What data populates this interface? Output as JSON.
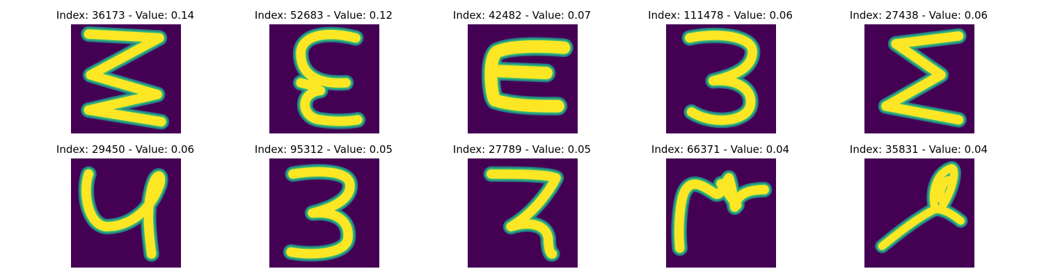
{
  "colors": {
    "background": "#440154",
    "stroke": "#fde725",
    "edge_mid": "#35b779",
    "edge_low": "#21918c"
  },
  "panels": [
    {
      "title": "Index: 36173 - Value: 0.14",
      "index": 36173,
      "value": 0.14,
      "glyph": "z-like zigzag"
    },
    {
      "title": "Index: 52683 - Value: 0.12",
      "index": 52683,
      "value": 0.12,
      "glyph": "epsilon"
    },
    {
      "title": "Index: 42482 - Value: 0.07",
      "index": 42482,
      "value": 0.07,
      "glyph": "thick C"
    },
    {
      "title": "Index: 111478 - Value: 0.06",
      "index": 111478,
      "value": 0.06,
      "glyph": "3"
    },
    {
      "title": "Index: 27438 - Value: 0.06",
      "index": 27438,
      "value": 0.06,
      "glyph": "sigma"
    },
    {
      "title": "Index: 29450 - Value: 0.06",
      "index": 29450,
      "value": 0.06,
      "glyph": "y-like"
    },
    {
      "title": "Index: 95312 - Value: 0.05",
      "index": 95312,
      "value": 0.05,
      "glyph": "3"
    },
    {
      "title": "Index: 27789 - Value: 0.05",
      "index": 27789,
      "value": 0.05,
      "glyph": "backwards z"
    },
    {
      "title": "Index: 66371 - Value: 0.04",
      "index": 66371,
      "value": 0.04,
      "glyph": "cursive m"
    },
    {
      "title": "Index: 35831 - Value: 0.04",
      "index": 35831,
      "value": 0.04,
      "glyph": "loop stroke"
    }
  ]
}
